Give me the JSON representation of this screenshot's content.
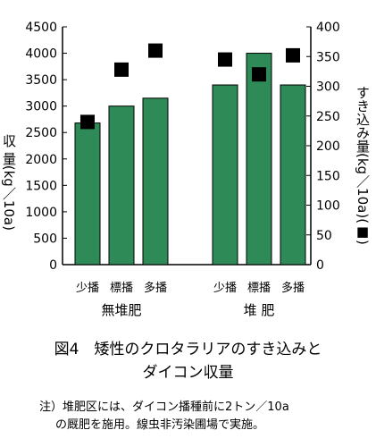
{
  "chart_data": {
    "type": "bar",
    "groups": [
      "無堆肥",
      "堆 肥"
    ],
    "categories": [
      "少播",
      "標播",
      "多播",
      "少播",
      "標播",
      "多播"
    ],
    "category_group": [
      0,
      0,
      0,
      1,
      1,
      1
    ],
    "series": [
      {
        "kind": "bar",
        "axis": "left",
        "values": [
          2680,
          3000,
          3150,
          3400,
          4000,
          3400
        ]
      },
      {
        "kind": "point",
        "axis": "right",
        "values": [
          240,
          328,
          360,
          345,
          320,
          352
        ]
      }
    ],
    "y_left": {
      "ticks": [
        "0",
        "500",
        "1000",
        "1500",
        "2000",
        "2500",
        "3000",
        "3500",
        "4000",
        "4500"
      ],
      "ylim": [
        0,
        4500
      ],
      "label": "収 量(kg／10a)"
    },
    "y_right": {
      "ticks": [
        "0",
        "50",
        "100",
        "150",
        "200",
        "250",
        "300",
        "350",
        "400"
      ],
      "ylim": [
        0,
        400
      ],
      "label": "すき込み量(kg／10a)(■)"
    },
    "grid": false,
    "colors": {
      "bar": "#2e8b57",
      "marker": "#000000"
    }
  },
  "caption": {
    "line1": "図4　矮性のクロタラリアのすき込みと",
    "line2": "ダイコン収量"
  },
  "note": {
    "line1": "注）堆肥区には、ダイコン播種前に2トン／10a",
    "line2": "の厩肥を施用。線虫非汚染圃場で実施。"
  }
}
